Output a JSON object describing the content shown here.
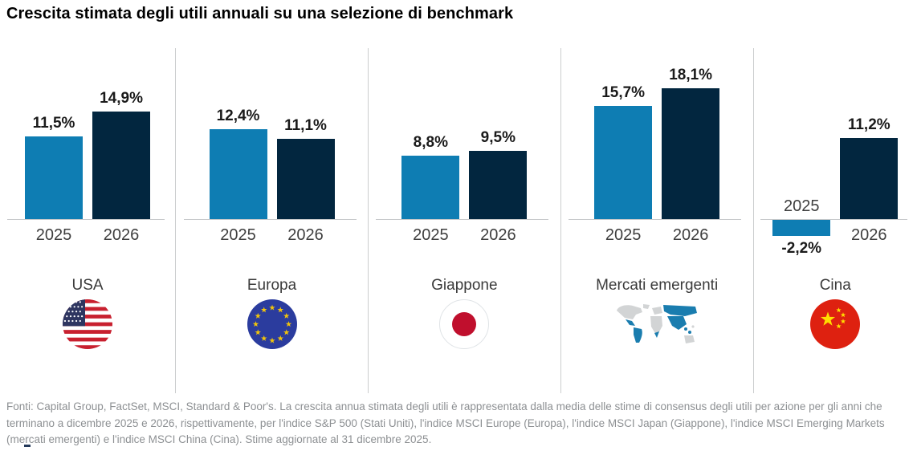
{
  "title": "Crescita stimata degli utili annuali su una selezione di benchmark",
  "chart_data": {
    "type": "bar",
    "title": "Crescita stimata degli utili annuali su una selezione di benchmark",
    "categories": [
      "USA",
      "Europa",
      "Giappone",
      "Mercati emergenti",
      "Cina"
    ],
    "series": [
      {
        "name": "2025",
        "color": "#0E7DB3",
        "values": [
          11.5,
          12.4,
          8.8,
          15.7,
          -2.2
        ]
      },
      {
        "name": "2026",
        "color": "#02263F",
        "values": [
          14.9,
          11.1,
          9.5,
          18.1,
          11.2
        ]
      }
    ],
    "value_labels": [
      [
        "11,5%",
        "14,9%"
      ],
      [
        "12,4%",
        "11,1%"
      ],
      [
        "8,8%",
        "9,5%"
      ],
      [
        "15,7%",
        "18,1%"
      ],
      [
        "-2,2%",
        "11,2%"
      ]
    ],
    "bar_year_labels": [
      "2025",
      "2026"
    ],
    "group_icons": [
      "usa-flag-icon",
      "eu-flag-icon",
      "japan-flag-icon",
      "emerging-markets-map-icon",
      "china-flag-icon"
    ],
    "unit": "%",
    "ylim": [
      -3,
      20
    ],
    "grid": false,
    "legend_position": "none"
  },
  "footnote": "Fonti: Capital Group, FactSet, MSCI, Standard & Poor's. La crescita annua stimata degli utili è rappresentata dalla media delle stime di consensus degli utili per azione per gli anni che terminano a dicembre 2025 e 2026, rispettivamente, per l'indice S&P 500 (Stati Uniti), l'indice MSCI Europe (Europa), l'indice MSCI Japan (Giappone), l'indice MSCI Emerging Markets (mercati emergenti) e l'indice MSCI China (Cina). Stime aggiornate al 31 dicembre 2025.",
  "colors": {
    "bar_2025": "#0E7DB3",
    "bar_2026": "#02263F",
    "baseline": "#C6C8CA",
    "separator": "#CBCDCE",
    "footnote_text": "#8D9093"
  }
}
